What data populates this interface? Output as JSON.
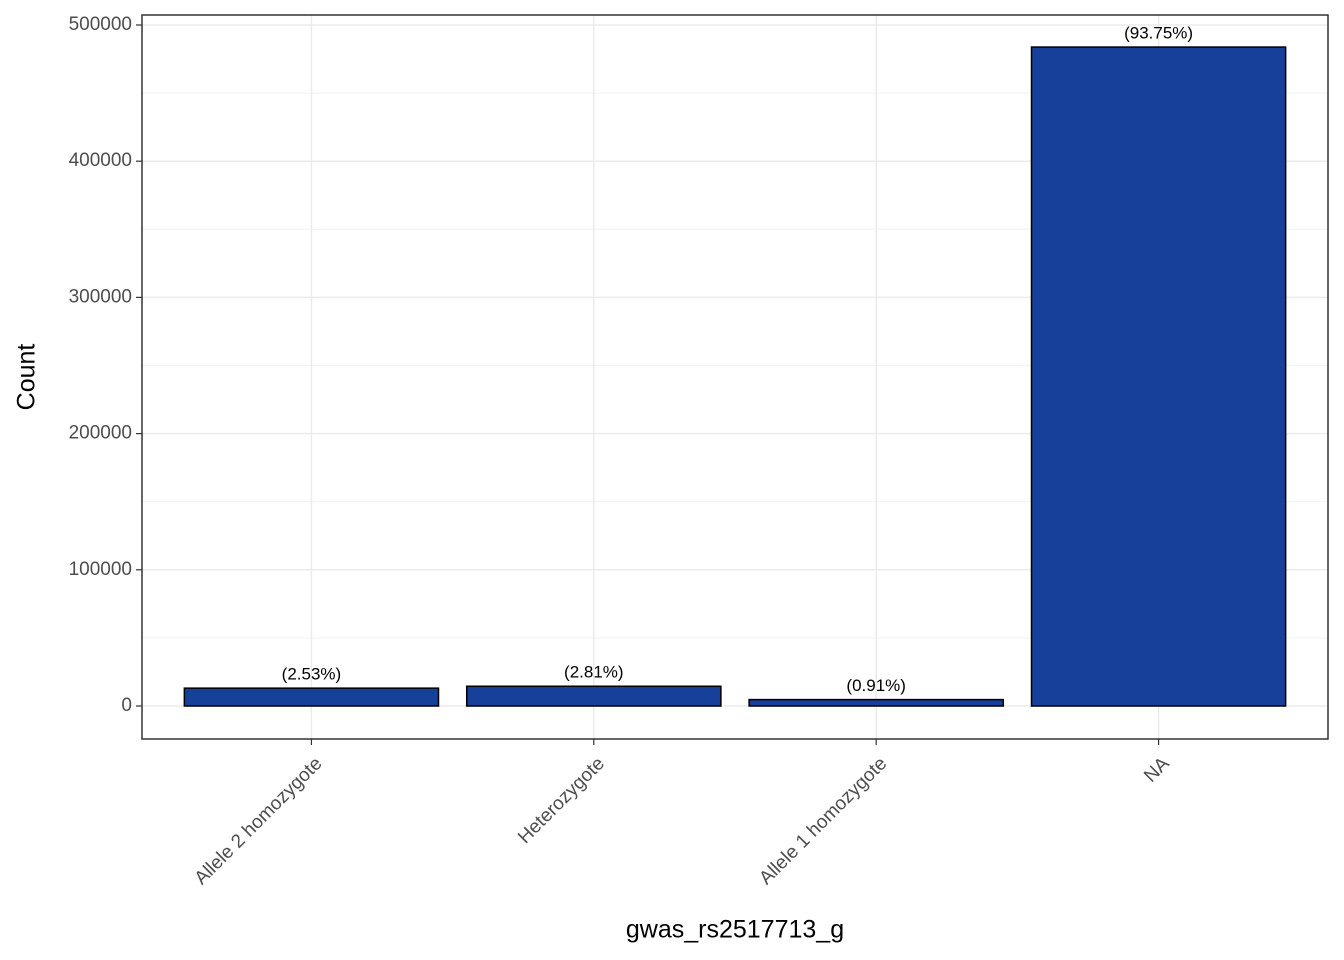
{
  "chart_data": {
    "type": "bar",
    "x_label": "gwas_rs2517713_g",
    "y_label": "Count",
    "categories": [
      "Allele 2 homozygote",
      "Heterozygote",
      "Allele 1 homozygote",
      "NA"
    ],
    "values": [
      13100,
      14500,
      4700,
      483800
    ],
    "annotations": [
      "(2.53%)",
      "(2.81%)",
      "(0.91%)",
      "(93.75%)"
    ],
    "color": "#17409a",
    "ylim": [
      -24229,
      507342
    ],
    "yticks": [
      0,
      100000,
      200000,
      300000,
      400000,
      500000
    ],
    "yticks_minor": [
      50000,
      150000,
      250000,
      350000,
      450000
    ],
    "grid": true
  }
}
